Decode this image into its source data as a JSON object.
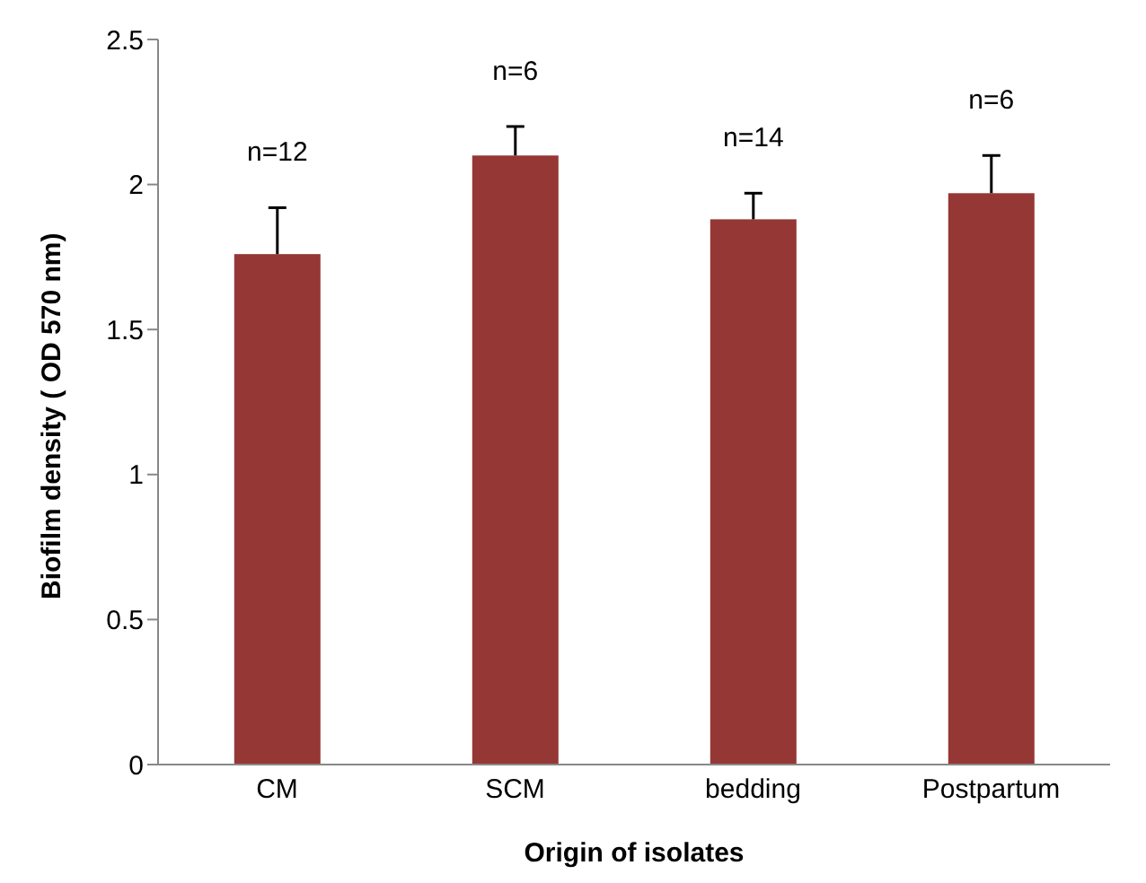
{
  "chart_data": {
    "type": "bar",
    "xlabel": "Origin of isolates",
    "ylabel": "Biofilm density ( OD 570 nm)",
    "categories": [
      "CM",
      "SCM",
      "bedding",
      "Postpartum"
    ],
    "values": [
      1.76,
      2.1,
      1.88,
      1.97
    ],
    "errors": [
      [
        1.76,
        1.92
      ],
      [
        2.1,
        2.2
      ],
      [
        1.88,
        1.97
      ],
      [
        1.97,
        2.1
      ]
    ],
    "color": "#953735",
    "ylim": [
      0,
      2.5
    ],
    "yticks": [
      0,
      0.5,
      1,
      1.5,
      2,
      2.5
    ],
    "grid": false,
    "legend": false,
    "annotations": [
      "n=12",
      "n=6",
      "n=14",
      "n=6"
    ]
  }
}
